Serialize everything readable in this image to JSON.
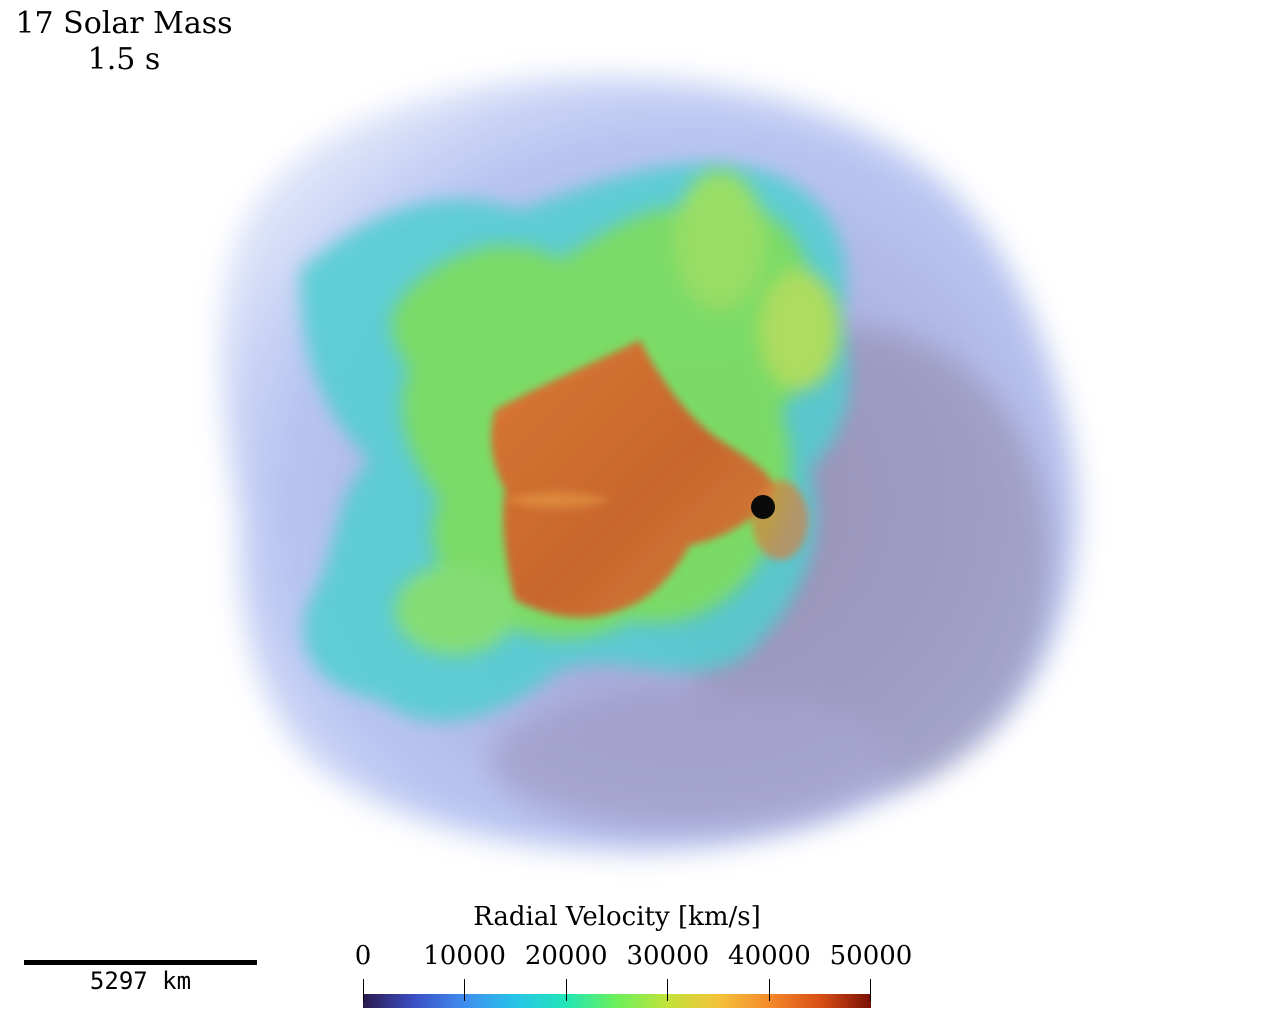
{
  "header": {
    "title": "17 Solar Mass",
    "time": "1.5 s"
  },
  "scale_bar": {
    "label": "5297 km"
  },
  "colorbar": {
    "title": "Radial Velocity [km/s]",
    "ticks": [
      "0",
      "10000",
      "20000",
      "30000",
      "40000",
      "50000"
    ],
    "min": 0,
    "max": 50000,
    "colors": [
      "#2b1a4e",
      "#3b4fc4",
      "#3f8df0",
      "#27c4e8",
      "#21e6b6",
      "#6cf05a",
      "#c3e23a",
      "#f4c23a",
      "#f58a2a",
      "#d94f15",
      "#7a0f05"
    ]
  },
  "visualization": {
    "subject": "supernova-ejecta-volume-render",
    "colors": {
      "outer_halo": "#a9b8ec",
      "outer_shadow": "#9a8fb8",
      "mid_layer": "#52d8c4",
      "green_plumes": "#8be25a",
      "hot_core": "#d9672b",
      "compact_object": "#0a0a0a"
    }
  }
}
